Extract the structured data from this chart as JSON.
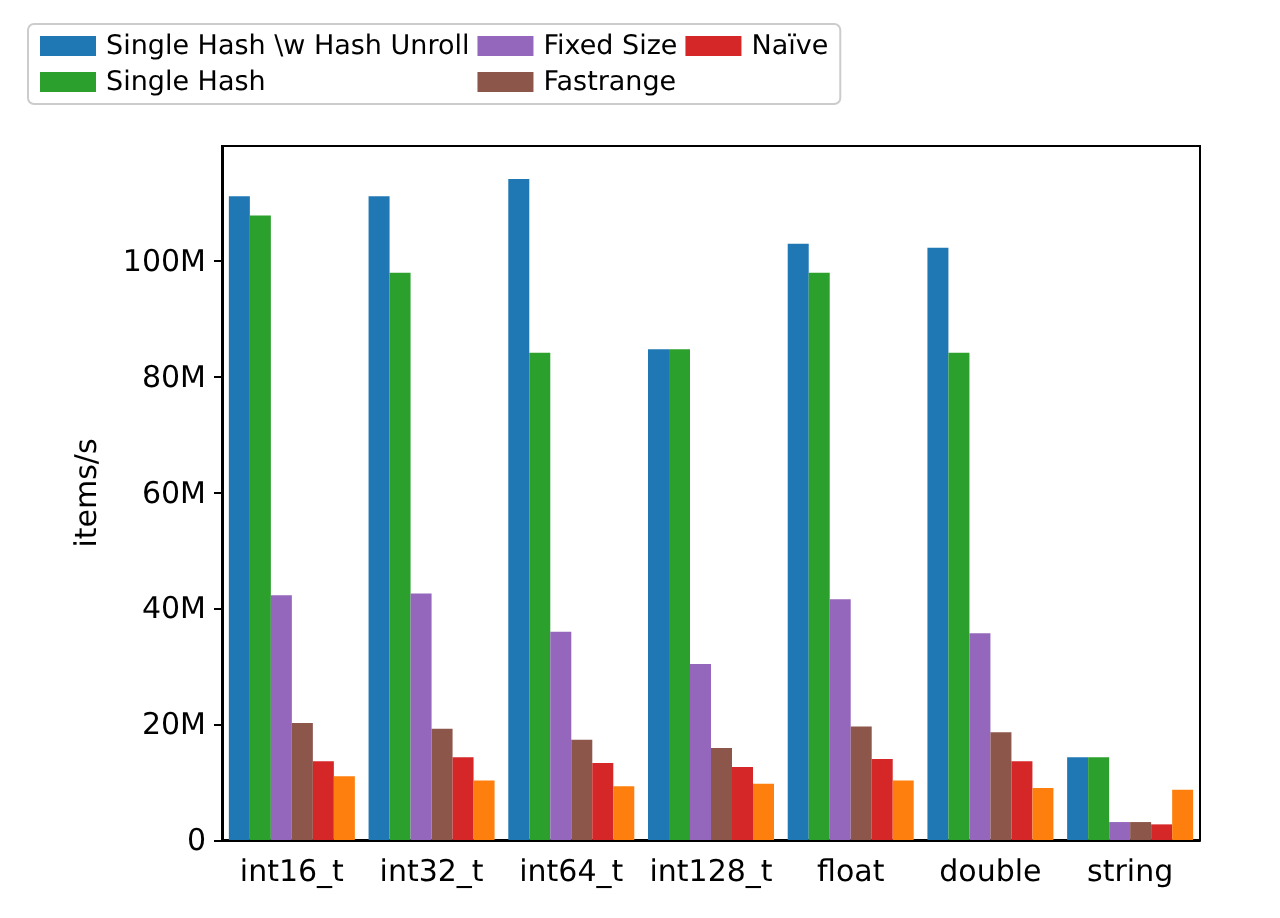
{
  "chart_data": {
    "type": "bar",
    "ylabel": "items/s",
    "categories": [
      "int16_t",
      "int32_t",
      "int64_t",
      "int128_t",
      "float",
      "double",
      "string"
    ],
    "series": [
      {
        "name": "Single Hash \\w Hash Unroll",
        "color": "#1f77b4",
        "values": [
          111200000,
          111200000,
          114200000,
          84800000,
          103000000,
          102300000,
          14300000
        ]
      },
      {
        "name": "Single Hash",
        "color": "#2ca02c",
        "values": [
          107900000,
          98000000,
          84200000,
          84800000,
          98000000,
          84200000,
          14300000
        ]
      },
      {
        "name": "Fixed Size",
        "color": "#9467bd",
        "values": [
          42300000,
          42600000,
          36000000,
          30400000,
          41600000,
          35700000,
          3100000
        ]
      },
      {
        "name": "Fastrange",
        "color": "#8c564b",
        "values": [
          20200000,
          19200000,
          17300000,
          15900000,
          19600000,
          18600000,
          3100000
        ]
      },
      {
        "name": "Naïve",
        "color": "#d62728",
        "values": [
          13600000,
          14300000,
          13300000,
          12600000,
          14000000,
          13600000,
          2700000
        ]
      },
      {
        "color": "#ff7f0e",
        "values": [
          11000000,
          10300000,
          9300000,
          9700000,
          10300000,
          9000000,
          8700000
        ]
      }
    ],
    "ylim": [
      0,
      119900000
    ],
    "yticks": [
      0,
      {
        "value": 20000000,
        "label": "20M"
      },
      {
        "value": 40000000,
        "label": "40M"
      },
      {
        "value": 60000000,
        "label": "60M"
      },
      {
        "value": 80000000,
        "label": "80M"
      },
      {
        "value": 100000000,
        "label": "100M"
      }
    ],
    "legend": "top"
  }
}
